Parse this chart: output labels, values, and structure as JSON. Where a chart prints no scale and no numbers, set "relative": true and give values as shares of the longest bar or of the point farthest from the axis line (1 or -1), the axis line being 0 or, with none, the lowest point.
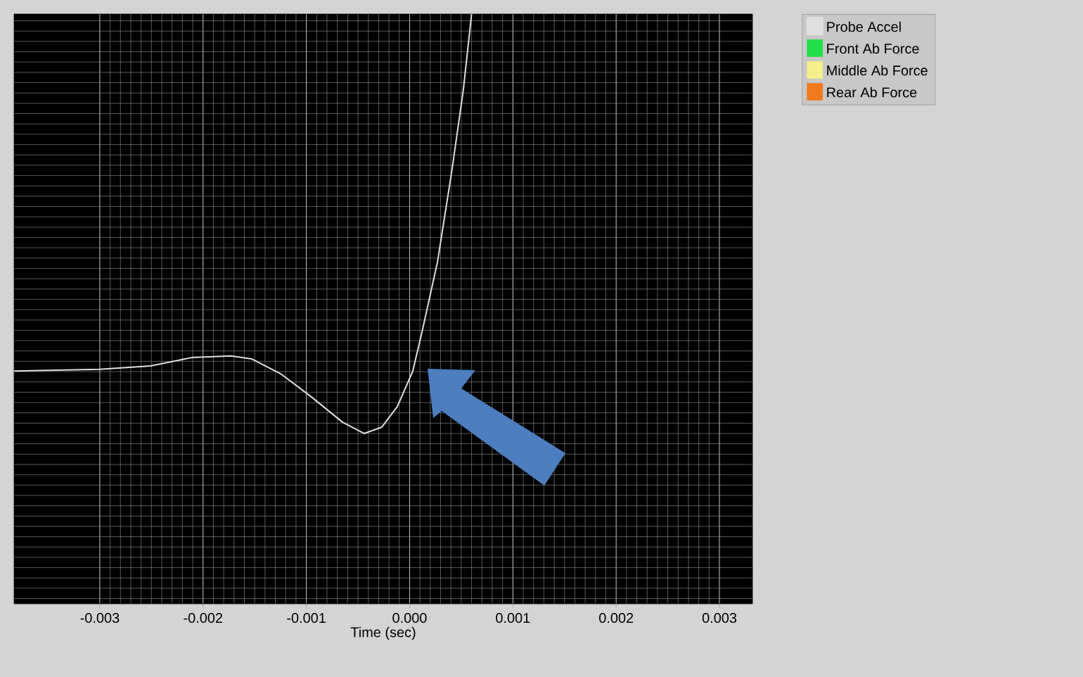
{
  "chart_data": {
    "type": "line",
    "xlabel": "Time (sec)",
    "relative": true,
    "xlim": [
      -0.00383,
      0.00332
    ],
    "xticks": [
      -0.003,
      -0.002,
      -0.001,
      {
        "value": 0,
        "label": "0.000"
      },
      0.001,
      0.002,
      0.003
    ],
    "grid": true,
    "legend": "top right",
    "marker": "none",
    "line_style": "solid",
    "series": [
      {
        "name": "Probe Accel",
        "color": "#e0e0e0",
        "x": [
          -0.00383,
          -0.003,
          -0.00251,
          -0.00211,
          -0.00173,
          -0.00153,
          -0.00124,
          -0.00095,
          -0.00065,
          -0.00044,
          -0.00027,
          -0.00012,
          3e-05,
          0.00012,
          0.00027,
          0.00041,
          0.00052,
          0.0006
        ],
        "values": [
          0.149,
          0.153,
          0.161,
          0.181,
          0.185,
          0.178,
          0.141,
          0.087,
          0.027,
          0,
          0.015,
          0.064,
          0.148,
          0.242,
          0.409,
          0.628,
          0.819,
          1
        ]
      },
      {
        "name": "Front Ab Force",
        "color": "#22e04a"
      },
      {
        "name": "Middle Ab Force",
        "color": "#f5f08a"
      },
      {
        "name": "Rear Ab Force",
        "color": "#f07a1e"
      }
    ]
  }
}
